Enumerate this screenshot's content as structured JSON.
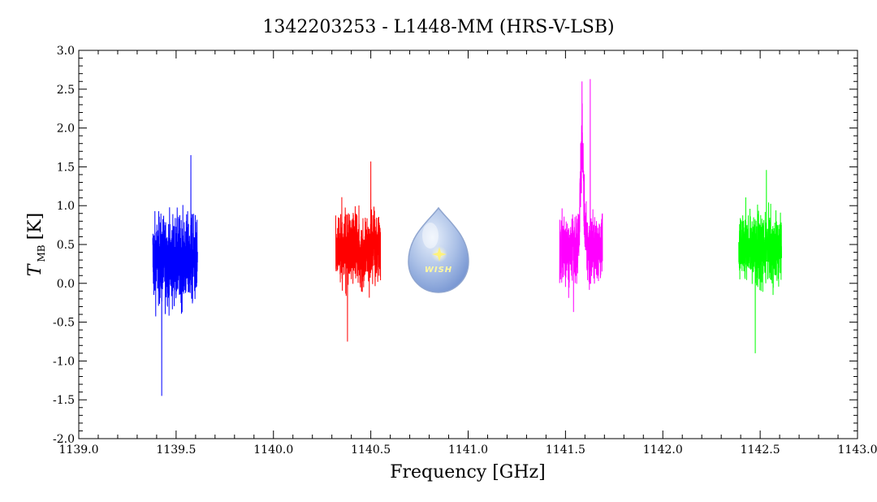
{
  "chart_data": {
    "type": "line",
    "title": "1342203253 - L1448-MM (HRS-V-LSB)",
    "xlabel": "Frequency [GHz]",
    "ylabel_main": "T",
    "ylabel_sub": "MB",
    "ylabel_unit": "[K]",
    "xlim": [
      1139.0,
      1143.0
    ],
    "ylim": [
      -2.0,
      3.0
    ],
    "x_ticks": [
      1139.0,
      1139.5,
      1140.0,
      1140.5,
      1141.0,
      1141.5,
      1142.0,
      1142.5,
      1143.0
    ],
    "x_tick_labels": [
      "1139.0",
      "1139.5",
      "1140.0",
      "1140.5",
      "1141.0",
      "1141.5",
      "1142.0",
      "1142.5",
      "1143.0"
    ],
    "y_ticks": [
      -2.0,
      -1.5,
      -1.0,
      -0.5,
      0.0,
      0.5,
      1.0,
      1.5,
      2.0,
      2.5,
      3.0
    ],
    "y_tick_labels": [
      "-2.0",
      "-1.5",
      "-1.0",
      "-0.5",
      "0.0",
      "0.5",
      "1.0",
      "1.5",
      "2.0",
      "2.5",
      "3.0"
    ],
    "grid": false,
    "series": [
      {
        "color": "#0000ff",
        "x_range": [
          1139.38,
          1139.61
        ],
        "baseline": 0.3,
        "noise": 0.38,
        "min": -1.45,
        "max": 1.65,
        "peak_x": null,
        "peak_y": null
      },
      {
        "color": "#ff0000",
        "x_range": [
          1140.32,
          1140.55
        ],
        "baseline": 0.45,
        "noise": 0.3,
        "min": -0.75,
        "max": 1.57,
        "peak_x": null,
        "peak_y": null
      },
      {
        "color": "#ff00ff",
        "x_range": [
          1141.47,
          1141.69
        ],
        "baseline": 0.45,
        "noise": 0.3,
        "min": -0.37,
        "max": 2.63,
        "peak_x": 1141.585,
        "peak_y": 2.6
      },
      {
        "color": "#00ff00",
        "x_range": [
          1142.39,
          1142.61
        ],
        "baseline": 0.45,
        "noise": 0.3,
        "min": -0.9,
        "max": 1.46,
        "peak_x": null,
        "peak_y": null
      }
    ],
    "logo": {
      "text": "WISH"
    }
  }
}
